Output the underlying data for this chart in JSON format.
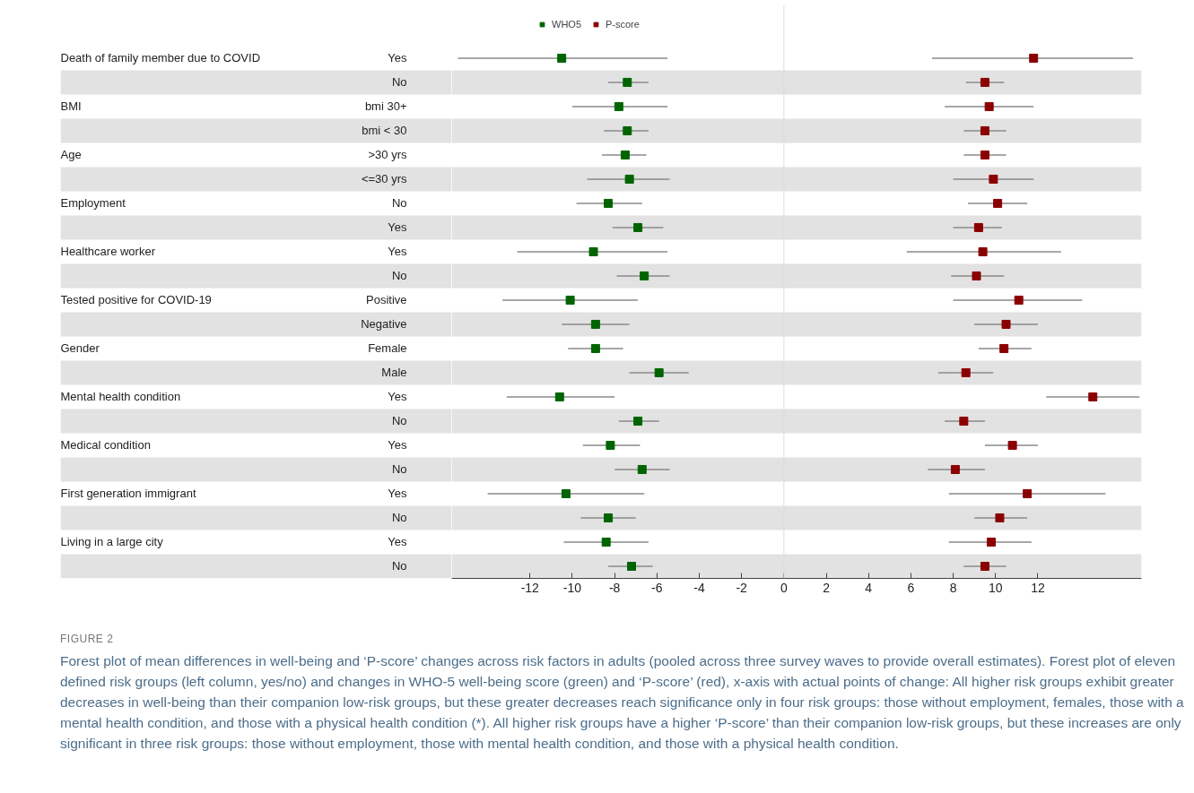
{
  "chart_data": {
    "type": "scatter",
    "orientation": "horizontal",
    "marker": "square",
    "legend": "top",
    "grid": false,
    "title": "FIGURE 2",
    "subtitle": "Forest plot of mean differences in well-being and ‘P-score’ changes across risk factors in adults (pooled across three survey waves to provide overall estimates). Forest plot of eleven defined risk groups (left column, yes/no) and changes in WHO-5 well-being score (green) and ‘P-score’ (red), x-axis with actual points of change: All higher risk groups exhibit greater decreases in well-being than their companion low-risk groups, but these greater decreases reach significance only in four risk groups: those without employment, females, those with a mental health condition, and those with a physical health condition (*). All higher risk groups have a higher ‘P-score’ than their companion low-risk groups, but these increases are only significant in three risk groups: those without employment, those with mental health condition, and those with a physical health condition.",
    "annotations": [
      "Death of family member due to COVID",
      "BMI",
      "Age",
      "Employment",
      "Healthcare worker",
      "Tested positive for COVID-19",
      "Gender",
      "Mental health condition",
      "Medical condition",
      "First generation immigrant",
      "Living in a large city"
    ],
    "categories": [
      "Yes",
      "No",
      "bmi 30+",
      "bmi < 30",
      ">30 yrs",
      "<=30 yrs",
      "No",
      "Yes",
      "Yes",
      "No",
      "Positive",
      "Negative",
      "Female",
      "Male",
      "Yes",
      "No",
      "Yes",
      "No",
      "Yes",
      "No",
      "Yes",
      "No"
    ],
    "xlim": [
      -15.7,
      16.9
    ],
    "xticks": [
      -12,
      -10,
      -8,
      -6,
      -4,
      -2,
      0,
      2,
      4,
      6,
      8,
      10,
      12
    ],
    "ref_lines": [
      {
        "axis": "x",
        "value": 0,
        "color": "#dddddd"
      }
    ],
    "series": [
      {
        "name": "WHO5",
        "color": "#006400",
        "values": [
          -10.5,
          -7.4,
          -7.8,
          -7.4,
          -7.5,
          -7.3,
          -8.3,
          -6.9,
          -9.0,
          -6.6,
          -10.1,
          -8.9,
          -8.9,
          -5.9,
          -10.6,
          -6.9,
          -8.2,
          -6.7,
          -10.3,
          -8.3,
          -8.4,
          -7.2
        ],
        "errors": [
          [
            -15.4,
            -5.5
          ],
          [
            -8.3,
            -6.4
          ],
          [
            -10.0,
            -5.5
          ],
          [
            -8.5,
            -6.4
          ],
          [
            -8.6,
            -6.5
          ],
          [
            -9.3,
            -5.4
          ],
          [
            -9.8,
            -6.7
          ],
          [
            -8.1,
            -5.7
          ],
          [
            -12.6,
            -5.5
          ],
          [
            -7.9,
            -5.4
          ],
          [
            -13.3,
            -6.9
          ],
          [
            -10.5,
            -7.3
          ],
          [
            -10.2,
            -7.6
          ],
          [
            -7.3,
            -4.5
          ],
          [
            -13.1,
            -8.0
          ],
          [
            -7.8,
            -5.9
          ],
          [
            -9.5,
            -6.8
          ],
          [
            -8.0,
            -5.4
          ],
          [
            -14.0,
            -6.6
          ],
          [
            -9.6,
            -7.0
          ],
          [
            -10.4,
            -6.4
          ],
          [
            -8.3,
            -6.2
          ]
        ]
      },
      {
        "name": "P-score",
        "color": "#8b0000",
        "values": [
          11.8,
          9.5,
          9.7,
          9.5,
          9.5,
          9.9,
          10.1,
          9.2,
          9.4,
          9.1,
          11.1,
          10.5,
          10.4,
          8.6,
          14.6,
          8.5,
          10.8,
          8.1,
          11.5,
          10.2,
          9.8,
          9.5
        ],
        "errors": [
          [
            7.0,
            16.5
          ],
          [
            8.6,
            10.4
          ],
          [
            7.6,
            11.8
          ],
          [
            8.5,
            10.5
          ],
          [
            8.5,
            10.5
          ],
          [
            8.0,
            11.8
          ],
          [
            8.7,
            11.5
          ],
          [
            8.0,
            10.3
          ],
          [
            5.8,
            13.1
          ],
          [
            7.9,
            10.4
          ],
          [
            8.0,
            14.1
          ],
          [
            9.0,
            12.0
          ],
          [
            9.2,
            11.7
          ],
          [
            7.3,
            9.9
          ],
          [
            12.4,
            16.8
          ],
          [
            7.6,
            9.5
          ],
          [
            9.5,
            12.0
          ],
          [
            6.8,
            9.5
          ],
          [
            7.8,
            15.2
          ],
          [
            9.0,
            11.5
          ],
          [
            7.8,
            11.7
          ],
          [
            8.5,
            10.5
          ]
        ]
      }
    ]
  }
}
